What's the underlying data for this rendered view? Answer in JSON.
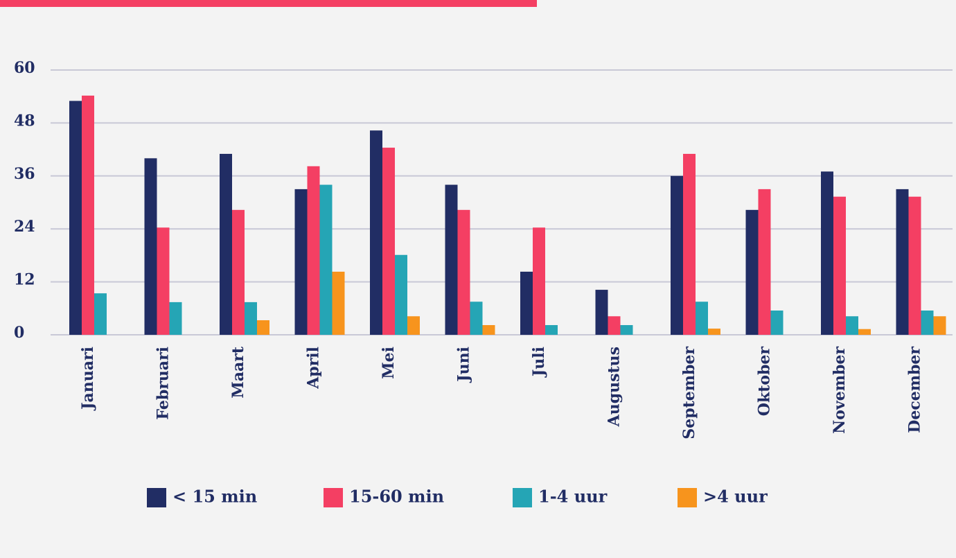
{
  "chart_data": {
    "type": "bar",
    "categories": [
      "Januari",
      "Februari",
      "Maart",
      "April",
      "Mei",
      "Juni",
      "Juli",
      "Augustus",
      "September",
      "Oktober",
      "November",
      "December"
    ],
    "series": [
      {
        "name": "< 15 min",
        "color": "#212d64",
        "values": [
          53,
          40,
          41,
          33,
          46.3,
          34,
          14.3,
          10.2,
          36,
          28.3,
          37,
          33
        ]
      },
      {
        "name": "15-60 min",
        "color": "#f43f63",
        "values": [
          54.2,
          24.3,
          28.3,
          38.2,
          42.4,
          28.3,
          24.3,
          4.2,
          41,
          33,
          31.3,
          31.3
        ]
      },
      {
        "name": "1-4 uur",
        "color": "#25a5b5",
        "values": [
          9.4,
          7.4,
          7.4,
          34,
          18.1,
          7.5,
          2.2,
          2.2,
          7.5,
          5.5,
          4.2,
          5.5
        ]
      },
      {
        "name": ">4 uur",
        "color": "#f7941d",
        "values": [
          0,
          0,
          3.3,
          14.3,
          4.2,
          2.2,
          0,
          0,
          1.4,
          0,
          1.3,
          4.2
        ]
      }
    ],
    "ylim": [
      0,
      60
    ],
    "yticks": [
      0,
      12,
      24,
      36,
      48,
      60
    ],
    "grid": true
  }
}
